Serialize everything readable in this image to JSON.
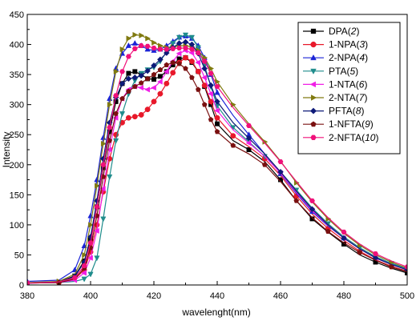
{
  "chart_data": {
    "type": "line",
    "xlabel": "wavelenght(nm)",
    "ylabel": "Intensity",
    "xlim": [
      380,
      500
    ],
    "ylim": [
      0,
      450
    ],
    "xticks": [
      "380",
      "400",
      "420",
      "440",
      "460",
      "480",
      "500"
    ],
    "yticks": [
      "0",
      "50",
      "100",
      "150",
      "200",
      "250",
      "300",
      "350",
      "400",
      "450"
    ],
    "grid": false,
    "legend_position": "top-right",
    "series": [
      {
        "name": "DPA",
        "num": "2",
        "color": "#000000",
        "marker": "square",
        "x": [
          380,
          390,
          395,
          398,
          400,
          402,
          404,
          406,
          408,
          410,
          412,
          414,
          416,
          418,
          420,
          422,
          424,
          426,
          428,
          430,
          432,
          434,
          436,
          438,
          440,
          445,
          450,
          455,
          460,
          465,
          470,
          475,
          480,
          485,
          490,
          495,
          500
        ],
        "y": [
          3,
          5,
          15,
          40,
          75,
          130,
          195,
          255,
          305,
          335,
          352,
          355,
          350,
          343,
          342,
          347,
          355,
          366,
          376,
          378,
          370,
          355,
          330,
          300,
          268,
          240,
          225,
          205,
          175,
          140,
          110,
          88,
          68,
          50,
          38,
          28,
          20
        ]
      },
      {
        "name": "1-NPA",
        "num": "3",
        "color": "#e8182a",
        "marker": "circle",
        "x": [
          380,
          390,
          395,
          398,
          400,
          402,
          404,
          406,
          408,
          410,
          412,
          414,
          416,
          418,
          420,
          422,
          424,
          426,
          428,
          430,
          432,
          434,
          436,
          438,
          440,
          445,
          450,
          455,
          460,
          465,
          470,
          475,
          480,
          485,
          490,
          495,
          500
        ],
        "y": [
          3,
          4,
          10,
          25,
          55,
          100,
          155,
          210,
          250,
          270,
          278,
          280,
          283,
          292,
          305,
          318,
          335,
          353,
          370,
          378,
          372,
          355,
          332,
          305,
          278,
          248,
          230,
          210,
          182,
          148,
          118,
          94,
          74,
          56,
          42,
          31,
          23
        ]
      },
      {
        "name": "2-NPA",
        "num": "4",
        "color": "#1a23d6",
        "marker": "triangle-up",
        "x": [
          380,
          390,
          395,
          398,
          400,
          402,
          404,
          406,
          408,
          410,
          412,
          414,
          416,
          418,
          420,
          422,
          424,
          426,
          428,
          430,
          432,
          434,
          436,
          438,
          440,
          445,
          450,
          455,
          460,
          465,
          470,
          475,
          480,
          485,
          490,
          495,
          500
        ],
        "y": [
          6,
          8,
          25,
          65,
          115,
          175,
          245,
          310,
          360,
          385,
          398,
          402,
          398,
          392,
          390,
          392,
          398,
          405,
          412,
          414,
          410,
          398,
          378,
          350,
          320,
          282,
          250,
          218,
          185,
          152,
          122,
          98,
          78,
          60,
          46,
          35,
          26
        ]
      },
      {
        "name": "PTA",
        "num": "5",
        "color": "#1f8c8c",
        "marker": "triangle-down",
        "x": [
          380,
          390,
          395,
          398,
          400,
          402,
          404,
          406,
          408,
          410,
          412,
          414,
          416,
          418,
          420,
          422,
          424,
          426,
          428,
          430,
          432,
          434,
          436,
          438,
          440,
          445,
          450,
          455,
          460,
          465,
          470,
          475,
          480,
          485,
          490,
          495,
          500
        ],
        "y": [
          3,
          4,
          6,
          10,
          18,
          45,
          110,
          180,
          240,
          285,
          318,
          340,
          352,
          358,
          362,
          372,
          388,
          402,
          412,
          416,
          412,
          395,
          365,
          330,
          298,
          262,
          238,
          214,
          188,
          158,
          128,
          102,
          80,
          62,
          47,
          36,
          27
        ]
      },
      {
        "name": "1-NTA",
        "num": "6",
        "color": "#f01ee6",
        "marker": "triangle-left",
        "x": [
          380,
          390,
          395,
          398,
          400,
          402,
          404,
          406,
          408,
          410,
          412,
          414,
          416,
          418,
          420,
          422,
          424,
          426,
          428,
          430,
          432,
          434,
          436,
          438,
          440,
          445,
          450,
          455,
          460,
          465,
          470,
          475,
          480,
          485,
          490,
          495,
          500
        ],
        "y": [
          3,
          4,
          8,
          20,
          45,
          90,
          160,
          225,
          278,
          310,
          325,
          330,
          328,
          325,
          328,
          338,
          355,
          372,
          385,
          390,
          386,
          370,
          345,
          318,
          290,
          258,
          236,
          214,
          186,
          154,
          124,
          99,
          78,
          60,
          45,
          34,
          25
        ]
      },
      {
        "name": "2-NTA",
        "num": "7",
        "color": "#807a10",
        "marker": "triangle-right",
        "x": [
          380,
          390,
          395,
          398,
          400,
          402,
          404,
          406,
          408,
          410,
          412,
          414,
          416,
          418,
          420,
          422,
          424,
          426,
          428,
          430,
          432,
          434,
          436,
          438,
          440,
          445,
          450,
          455,
          460,
          465,
          470,
          475,
          480,
          485,
          490,
          495,
          500
        ],
        "y": [
          4,
          6,
          18,
          50,
          100,
          165,
          235,
          300,
          355,
          392,
          410,
          416,
          415,
          410,
          403,
          398,
          395,
          396,
          398,
          398,
          396,
          390,
          378,
          360,
          338,
          300,
          268,
          238,
          206,
          170,
          138,
          110,
          86,
          66,
          50,
          38,
          28
        ]
      },
      {
        "name": "PFTA",
        "num": "8",
        "color": "#0d1a78",
        "marker": "diamond",
        "x": [
          380,
          390,
          395,
          398,
          400,
          402,
          404,
          406,
          408,
          410,
          412,
          414,
          416,
          418,
          420,
          422,
          424,
          426,
          428,
          430,
          432,
          434,
          436,
          438,
          440,
          445,
          450,
          455,
          460,
          465,
          470,
          475,
          480,
          485,
          490,
          495,
          500
        ],
        "y": [
          3,
          5,
          14,
          38,
          80,
          140,
          210,
          270,
          312,
          335,
          343,
          345,
          348,
          356,
          365,
          375,
          386,
          395,
          402,
          404,
          400,
          385,
          360,
          332,
          305,
          270,
          244,
          218,
          188,
          156,
          126,
          100,
          78,
          60,
          45,
          34,
          25
        ]
      },
      {
        "name": "1-NFTA",
        "num": "9",
        "color": "#7a1010",
        "marker": "pentagon",
        "x": [
          380,
          390,
          395,
          398,
          400,
          402,
          404,
          406,
          408,
          410,
          412,
          414,
          416,
          418,
          420,
          422,
          424,
          426,
          428,
          430,
          432,
          434,
          436,
          438,
          440,
          445,
          450,
          455,
          460,
          465,
          470,
          475,
          480,
          485,
          490,
          495,
          500
        ],
        "y": [
          3,
          4,
          10,
          28,
          62,
          115,
          180,
          240,
          285,
          310,
          322,
          330,
          336,
          343,
          350,
          358,
          366,
          370,
          368,
          360,
          345,
          325,
          300,
          275,
          255,
          232,
          218,
          200,
          172,
          140,
          112,
          89,
          70,
          54,
          41,
          30,
          22
        ]
      },
      {
        "name": "2-NFTA",
        "num": "10",
        "color": "#f0107a",
        "marker": "hexagon",
        "x": [
          380,
          390,
          395,
          398,
          400,
          402,
          404,
          406,
          408,
          410,
          412,
          414,
          416,
          418,
          420,
          422,
          424,
          426,
          428,
          430,
          432,
          434,
          436,
          438,
          440,
          445,
          450,
          455,
          460,
          465,
          470,
          475,
          480,
          485,
          490,
          495,
          500
        ],
        "y": [
          3,
          5,
          12,
          32,
          70,
          130,
          200,
          262,
          315,
          355,
          380,
          393,
          398,
          397,
          394,
          392,
          392,
          393,
          394,
          394,
          392,
          386,
          372,
          352,
          330,
          295,
          265,
          236,
          205,
          172,
          140,
          112,
          88,
          68,
          52,
          40,
          30
        ]
      }
    ]
  }
}
